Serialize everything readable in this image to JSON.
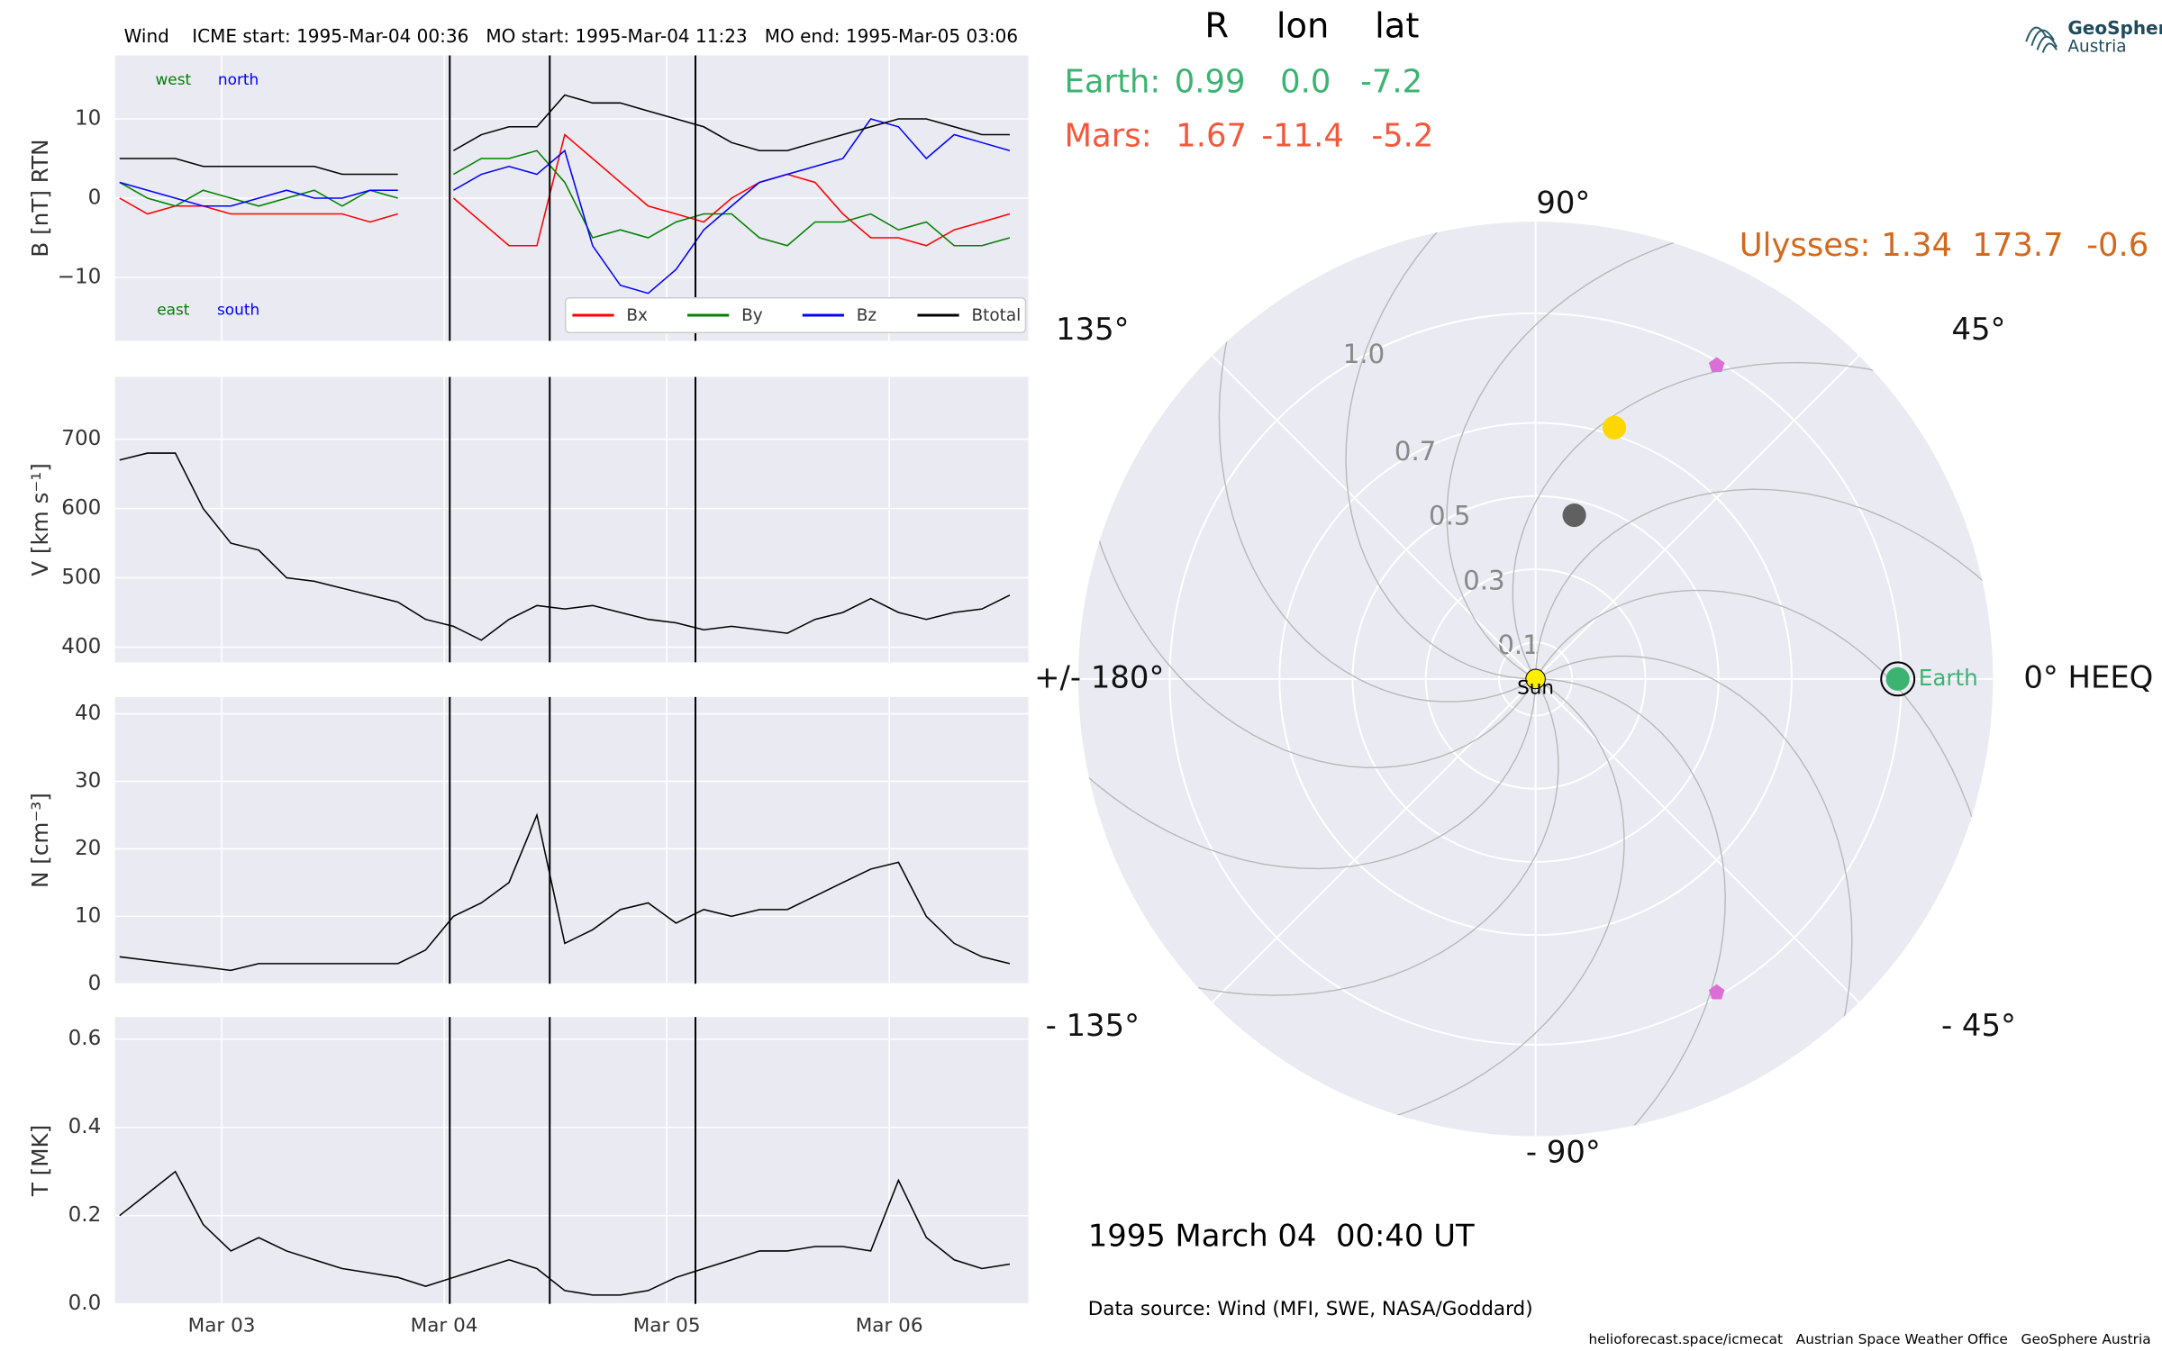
{
  "header": {
    "title": "Wind    ICME start: 1995-Mar-04 00:36   MO start: 1995-Mar-04 11:23   MO end: 1995-Mar-05 03:06"
  },
  "events": [
    "1995-03-04T00:36",
    "1995-03-04T11:23",
    "1995-03-05T03:06"
  ],
  "chart_data": [
    {
      "type": "line",
      "ylabel": "B [nT] RTN",
      "legend": "lower right",
      "grid": true,
      "x": [
        "1995-03-02T13:00",
        "1995-03-02T16:00",
        "1995-03-02T19:00",
        "1995-03-02T22:00",
        "1995-03-03T01:00",
        "1995-03-03T04:00",
        "1995-03-03T07:00",
        "1995-03-03T10:00",
        "1995-03-03T13:00",
        "1995-03-03T16:00",
        "1995-03-03T19:00",
        "1995-03-03T22:00",
        "1995-03-04T01:00",
        "1995-03-04T04:00",
        "1995-03-04T07:00",
        "1995-03-04T10:00",
        "1995-03-04T13:00",
        "1995-03-04T16:00",
        "1995-03-04T19:00",
        "1995-03-04T22:00",
        "1995-03-05T01:00",
        "1995-03-05T04:00",
        "1995-03-05T07:00",
        "1995-03-05T10:00",
        "1995-03-05T13:00",
        "1995-03-05T16:00",
        "1995-03-05T19:00",
        "1995-03-05T22:00",
        "1995-03-06T01:00",
        "1995-03-06T04:00",
        "1995-03-06T07:00",
        "1995-03-06T10:00",
        "1995-03-06T13:00"
      ],
      "series": [
        {
          "name": "Bx",
          "color": "#ff0000",
          "values": [
            0,
            -2,
            -1,
            -1,
            -2,
            -2,
            -2,
            -2,
            -2,
            -3,
            -2,
            null,
            0,
            -3,
            -6,
            -6,
            8,
            5,
            2,
            -1,
            -2,
            -3,
            0,
            2,
            3,
            2,
            -2,
            -5,
            -5,
            -6,
            -4,
            -3,
            -2
          ]
        },
        {
          "name": "By",
          "color": "#008000",
          "values": [
            2,
            0,
            -1,
            1,
            0,
            -1,
            0,
            1,
            -1,
            1,
            0,
            null,
            3,
            5,
            5,
            6,
            2,
            -5,
            -4,
            -5,
            -3,
            -2,
            -2,
            -5,
            -6,
            -3,
            -3,
            -2,
            -4,
            -3,
            -6,
            -6,
            -5
          ]
        },
        {
          "name": "Bz",
          "color": "#0000ff",
          "values": [
            2,
            1,
            0,
            -1,
            -1,
            0,
            1,
            0,
            0,
            1,
            1,
            null,
            1,
            3,
            4,
            3,
            6,
            -6,
            -11,
            -12,
            -9,
            -4,
            -1,
            2,
            3,
            4,
            5,
            10,
            9,
            5,
            8,
            7,
            6
          ]
        },
        {
          "name": "Btotal",
          "color": "#000000",
          "values": [
            5,
            5,
            5,
            4,
            4,
            4,
            4,
            4,
            3,
            3,
            3,
            null,
            6,
            8,
            9,
            9,
            13,
            12,
            12,
            11,
            10,
            9,
            7,
            6,
            6,
            7,
            8,
            9,
            10,
            10,
            9,
            8,
            8
          ]
        }
      ],
      "annotations": [
        {
          "text": "west",
          "color": "#008000"
        },
        {
          "text": "north",
          "color": "#0000ff"
        },
        {
          "text": "east",
          "color": "#008000"
        },
        {
          "text": "south",
          "color": "#0000ff"
        }
      ],
      "xlim": [
        "1995-03-02T12:30",
        "1995-03-06T15:00"
      ],
      "xticks": [
        "1995-03-03T00:00",
        "1995-03-04T00:00",
        "1995-03-05T00:00",
        "1995-03-06T00:00"
      ],
      "ylim": [
        -18,
        18
      ],
      "yticks": [
        {
          "value": -10,
          "label": "−10"
        },
        0,
        10
      ]
    },
    {
      "type": "line",
      "ylabel": "V [km s⁻¹]",
      "grid": true,
      "x": [
        "1995-03-02T13:00",
        "1995-03-02T16:00",
        "1995-03-02T19:00",
        "1995-03-02T22:00",
        "1995-03-03T01:00",
        "1995-03-03T04:00",
        "1995-03-03T07:00",
        "1995-03-03T10:00",
        "1995-03-03T13:00",
        "1995-03-03T16:00",
        "1995-03-03T19:00",
        "1995-03-03T22:00",
        "1995-03-04T01:00",
        "1995-03-04T04:00",
        "1995-03-04T07:00",
        "1995-03-04T10:00",
        "1995-03-04T13:00",
        "1995-03-04T16:00",
        "1995-03-04T19:00",
        "1995-03-04T22:00",
        "1995-03-05T01:00",
        "1995-03-05T04:00",
        "1995-03-05T07:00",
        "1995-03-05T10:00",
        "1995-03-05T13:00",
        "1995-03-05T16:00",
        "1995-03-05T19:00",
        "1995-03-05T22:00",
        "1995-03-06T01:00",
        "1995-03-06T04:00",
        "1995-03-06T07:00",
        "1995-03-06T10:00",
        "1995-03-06T13:00"
      ],
      "series": [
        {
          "color": "#000000",
          "values": [
            670,
            680,
            680,
            600,
            550,
            540,
            500,
            495,
            485,
            475,
            465,
            440,
            430,
            410,
            440,
            460,
            455,
            460,
            450,
            440,
            435,
            425,
            430,
            425,
            420,
            440,
            450,
            470,
            450,
            440,
            450,
            455,
            475
          ]
        }
      ],
      "xlim": [
        "1995-03-02T12:30",
        "1995-03-06T15:00"
      ],
      "xticks": [
        "1995-03-03T00:00",
        "1995-03-04T00:00",
        "1995-03-05T00:00",
        "1995-03-06T00:00"
      ],
      "ylim": [
        378,
        790
      ],
      "yticks": [
        400,
        500,
        600,
        700
      ]
    },
    {
      "type": "line",
      "ylabel": "N [cm⁻³]",
      "grid": true,
      "x": [
        "1995-03-02T13:00",
        "1995-03-02T16:00",
        "1995-03-02T19:00",
        "1995-03-02T22:00",
        "1995-03-03T01:00",
        "1995-03-03T04:00",
        "1995-03-03T07:00",
        "1995-03-03T10:00",
        "1995-03-03T13:00",
        "1995-03-03T16:00",
        "1995-03-03T19:00",
        "1995-03-03T22:00",
        "1995-03-04T01:00",
        "1995-03-04T04:00",
        "1995-03-04T07:00",
        "1995-03-04T10:00",
        "1995-03-04T13:00",
        "1995-03-04T16:00",
        "1995-03-04T19:00",
        "1995-03-04T22:00",
        "1995-03-05T01:00",
        "1995-03-05T04:00",
        "1995-03-05T07:00",
        "1995-03-05T10:00",
        "1995-03-05T13:00",
        "1995-03-05T16:00",
        "1995-03-05T19:00",
        "1995-03-05T22:00",
        "1995-03-06T01:00",
        "1995-03-06T04:00",
        "1995-03-06T07:00",
        "1995-03-06T10:00",
        "1995-03-06T13:00"
      ],
      "series": [
        {
          "color": "#000000",
          "values": [
            4,
            3.5,
            3,
            2.5,
            2,
            3,
            3,
            3,
            3,
            3,
            3,
            5,
            10,
            12,
            15,
            25,
            6,
            8,
            11,
            12,
            9,
            11,
            10,
            11,
            11,
            13,
            15,
            17,
            18,
            10,
            6,
            4,
            3
          ]
        }
      ],
      "xlim": [
        "1995-03-02T12:30",
        "1995-03-06T15:00"
      ],
      "xticks": [
        "1995-03-03T00:00",
        "1995-03-04T00:00",
        "1995-03-05T00:00",
        "1995-03-06T00:00"
      ],
      "ylim": [
        0,
        42.5
      ],
      "yticks": [
        0,
        10,
        20,
        30,
        40
      ]
    },
    {
      "type": "line",
      "ylabel": "T [MK]",
      "grid": true,
      "x": [
        "1995-03-02T13:00",
        "1995-03-02T16:00",
        "1995-03-02T19:00",
        "1995-03-02T22:00",
        "1995-03-03T01:00",
        "1995-03-03T04:00",
        "1995-03-03T07:00",
        "1995-03-03T10:00",
        "1995-03-03T13:00",
        "1995-03-03T16:00",
        "1995-03-03T19:00",
        "1995-03-03T22:00",
        "1995-03-04T01:00",
        "1995-03-04T04:00",
        "1995-03-04T07:00",
        "1995-03-04T10:00",
        "1995-03-04T13:00",
        "1995-03-04T16:00",
        "1995-03-04T19:00",
        "1995-03-04T22:00",
        "1995-03-05T01:00",
        "1995-03-05T04:00",
        "1995-03-05T07:00",
        "1995-03-05T10:00",
        "1995-03-05T13:00",
        "1995-03-05T16:00",
        "1995-03-05T19:00",
        "1995-03-05T22:00",
        "1995-03-06T01:00",
        "1995-03-06T04:00",
        "1995-03-06T07:00",
        "1995-03-06T10:00",
        "1995-03-06T13:00"
      ],
      "series": [
        {
          "color": "#000000",
          "values": [
            0.2,
            0.25,
            0.3,
            0.18,
            0.12,
            0.15,
            0.12,
            0.1,
            0.08,
            0.07,
            0.06,
            0.04,
            0.06,
            0.08,
            0.1,
            0.08,
            0.03,
            0.02,
            0.02,
            0.03,
            0.06,
            0.08,
            0.1,
            0.12,
            0.12,
            0.13,
            0.13,
            0.12,
            0.28,
            0.15,
            0.1,
            0.08,
            0.09
          ]
        }
      ],
      "xlim": [
        "1995-03-02T12:30",
        "1995-03-06T15:00"
      ],
      "xticks": [
        {
          "value": "1995-03-03T00:00",
          "label": "Mar 03"
        },
        {
          "value": "1995-03-04T00:00",
          "label": "Mar 04"
        },
        {
          "value": "1995-03-05T00:00",
          "label": "Mar 05"
        },
        {
          "value": "1995-03-06T00:00",
          "label": "Mar 06"
        }
      ],
      "ylim": [
        0,
        0.65
      ],
      "yticks": [
        {
          "value": 0,
          "label": "0.0"
        },
        0.2,
        0.4,
        0.6
      ]
    },
    {
      "type": "polar",
      "rlim": [
        0,
        1.25
      ],
      "rticks": [
        0.1,
        0.3,
        0.5,
        0.7,
        {
          "value": 1,
          "label": "1.0"
        }
      ],
      "thetaticks": [
        {
          "value": 0,
          "label": "0° HEEQ"
        },
        {
          "value": 45,
          "label": "45°"
        },
        {
          "value": 90,
          "label": "90°"
        },
        {
          "value": 135,
          "label": "135°"
        },
        {
          "value": 180,
          "label": "+/- 180°"
        },
        {
          "value": -135,
          "label": "- 135°"
        },
        {
          "value": -90,
          "label": "- 90°"
        },
        {
          "value": -45,
          "label": "- 45°"
        }
      ],
      "bodies": [
        {
          "label": "Sun",
          "r": 0,
          "lon": 0,
          "color": "#ffee00"
        },
        {
          "r": 0.46,
          "lon": 76.7,
          "color": "#606060"
        },
        {
          "r": 0.72,
          "lon": 72.6,
          "color": "#ffd700"
        },
        {
          "r": 0.99,
          "lon": 60,
          "color": "#da70d6",
          "marker": "pentagon"
        },
        {
          "r": 0.99,
          "lon": -60,
          "color": "#da70d6",
          "marker": "pentagon"
        },
        {
          "label": "Earth",
          "r": 0.99,
          "lon": 0,
          "color": "#3cb371"
        }
      ]
    }
  ],
  "table": {
    "header": [
      "R",
      "lon",
      "lat"
    ],
    "rows": [
      {
        "name": "Earth:",
        "cells": [
          "0.99",
          "0.0",
          "-7.2"
        ],
        "color": "#3cb371"
      },
      {
        "name": "Mars:",
        "cells": [
          "1.67",
          "-11.4",
          "-5.2"
        ],
        "color": "#f4583c"
      },
      {
        "name": "Ulysses:",
        "cells": [
          "1.34",
          "173.7",
          "-0.6"
        ],
        "color": "#d2691e"
      }
    ]
  },
  "date": "1995 March 04  00:40 UT",
  "data_source": "Data source: Wind (MFI, SWE, NASA/Goddard)",
  "footer": "helioforecast.space/icmecat   Austrian Space Weather Office   GeoSphere Austria",
  "logo": [
    "GeoSphere",
    "Austria"
  ]
}
